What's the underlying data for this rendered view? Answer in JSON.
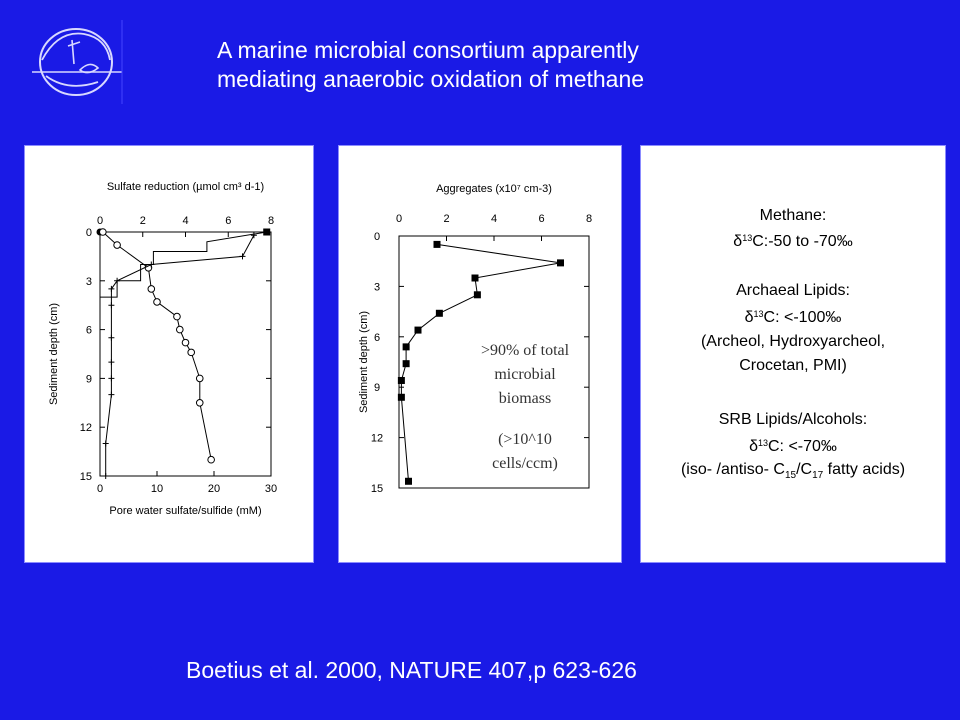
{
  "slide": {
    "title_line1": "A marine microbial consortium apparently",
    "title_line2": "mediating anaerobic oxidation of methane",
    "citation": "Boetius et al. 2000, NATURE 407,p 623-626",
    "background_color": "#1a1ae6",
    "logo_icon": "globe-bird-logo-icon"
  },
  "chart_data": [
    {
      "type": "line",
      "top_axis_label": "Sulfate reduction (µmol cm³ d-1)",
      "bottom_axis_label": "Pore water sulfate/sulfide (mM)",
      "ylabel": "Sediment depth (cm)",
      "ylim": [
        15,
        0
      ],
      "top_xlim": [
        0,
        8
      ],
      "bottom_xlim": [
        0,
        30
      ],
      "top_ticks": [
        0,
        2,
        4,
        6,
        8
      ],
      "bottom_ticks": [
        0,
        10,
        20,
        30
      ],
      "y_ticks": [
        0,
        3,
        6,
        9,
        12,
        15
      ],
      "series": [
        {
          "name": "",
          "axis": "top",
          "style": "step",
          "marker": "filled-square",
          "values": [
            [
              0,
              0
            ],
            [
              7.8,
              0
            ],
            [
              5,
              0.6
            ],
            [
              5,
              1.2
            ],
            [
              2.5,
              1.2
            ],
            [
              2.5,
              2.0
            ],
            [
              1.9,
              2.0
            ],
            [
              1.9,
              3.0
            ],
            [
              1.2,
              3.0
            ],
            [
              0.8,
              3.0
            ],
            [
              0.8,
              4.0
            ],
            [
              0,
              4.0
            ]
          ]
        },
        {
          "name": "",
          "axis": "bottom",
          "marker": "open-circle",
          "values": [
            [
              0.5,
              0
            ],
            [
              3,
              0.8
            ],
            [
              8.5,
              2.2
            ],
            [
              9,
              3.5
            ],
            [
              10,
              4.3
            ],
            [
              13.5,
              5.2
            ],
            [
              14,
              6
            ],
            [
              15,
              6.8
            ],
            [
              16,
              7.4
            ],
            [
              17.5,
              9
            ],
            [
              17.5,
              10.5
            ],
            [
              19.5,
              14
            ]
          ]
        },
        {
          "name": "",
          "axis": "bottom",
          "marker": "tick-cross",
          "values": [
            [
              27,
              0.2
            ],
            [
              25,
              1.5
            ],
            [
              9,
              2.0
            ],
            [
              3,
              3.0
            ],
            [
              2,
              3.5
            ],
            [
              2,
              4.5
            ],
            [
              2,
              6.5
            ],
            [
              2,
              8.0
            ],
            [
              2,
              9.0
            ],
            [
              2,
              10.0
            ],
            [
              1,
              13.0
            ],
            [
              1,
              15.0
            ]
          ]
        }
      ]
    },
    {
      "type": "line",
      "xlabel": "Aggregates (x10⁷ cm-3)",
      "ylabel": "Sediment depth (cm)",
      "xlim": [
        0,
        8
      ],
      "ylim": [
        15,
        0
      ],
      "x_ticks": [
        0,
        2,
        4,
        6,
        8
      ],
      "y_ticks": [
        0,
        3,
        6,
        9,
        12,
        15
      ],
      "annotation_1": ">90% of total microbial biomass",
      "annotation_2": "(>10^10 cells/ccm)",
      "series": [
        {
          "name": "",
          "marker": "filled-square",
          "values": [
            [
              1.6,
              0.5
            ],
            [
              6.8,
              1.6
            ],
            [
              3.2,
              2.5
            ],
            [
              3.3,
              3.5
            ],
            [
              1.7,
              4.6
            ],
            [
              0.8,
              5.6
            ],
            [
              0.3,
              6.6
            ],
            [
              0.3,
              7.6
            ],
            [
              0.1,
              8.6
            ],
            [
              0.1,
              9.6
            ],
            [
              0.4,
              14.6
            ]
          ]
        }
      ]
    }
  ],
  "info_panel": {
    "methane_label": "Methane:",
    "methane_value": "C:-50 to -70‰",
    "archaeal_label": "Archaeal Lipids:",
    "archaeal_value": "C: <-100‰",
    "archaeal_list_1": "(Archeol, Hydroxyarcheol,",
    "archaeal_list_2": "Crocetan, PMI)",
    "srb_label": "SRB Lipids/Alcohols:",
    "srb_value": "C: <-70‰",
    "delta_symbol": "δ",
    "isotope_mass": "13",
    "fatty_prefix": "(iso- /antiso- C",
    "fatty_sub1": "15",
    "fatty_mid": "/C",
    "fatty_sub2": "17",
    "fatty_suffix": " fatty acids)"
  }
}
